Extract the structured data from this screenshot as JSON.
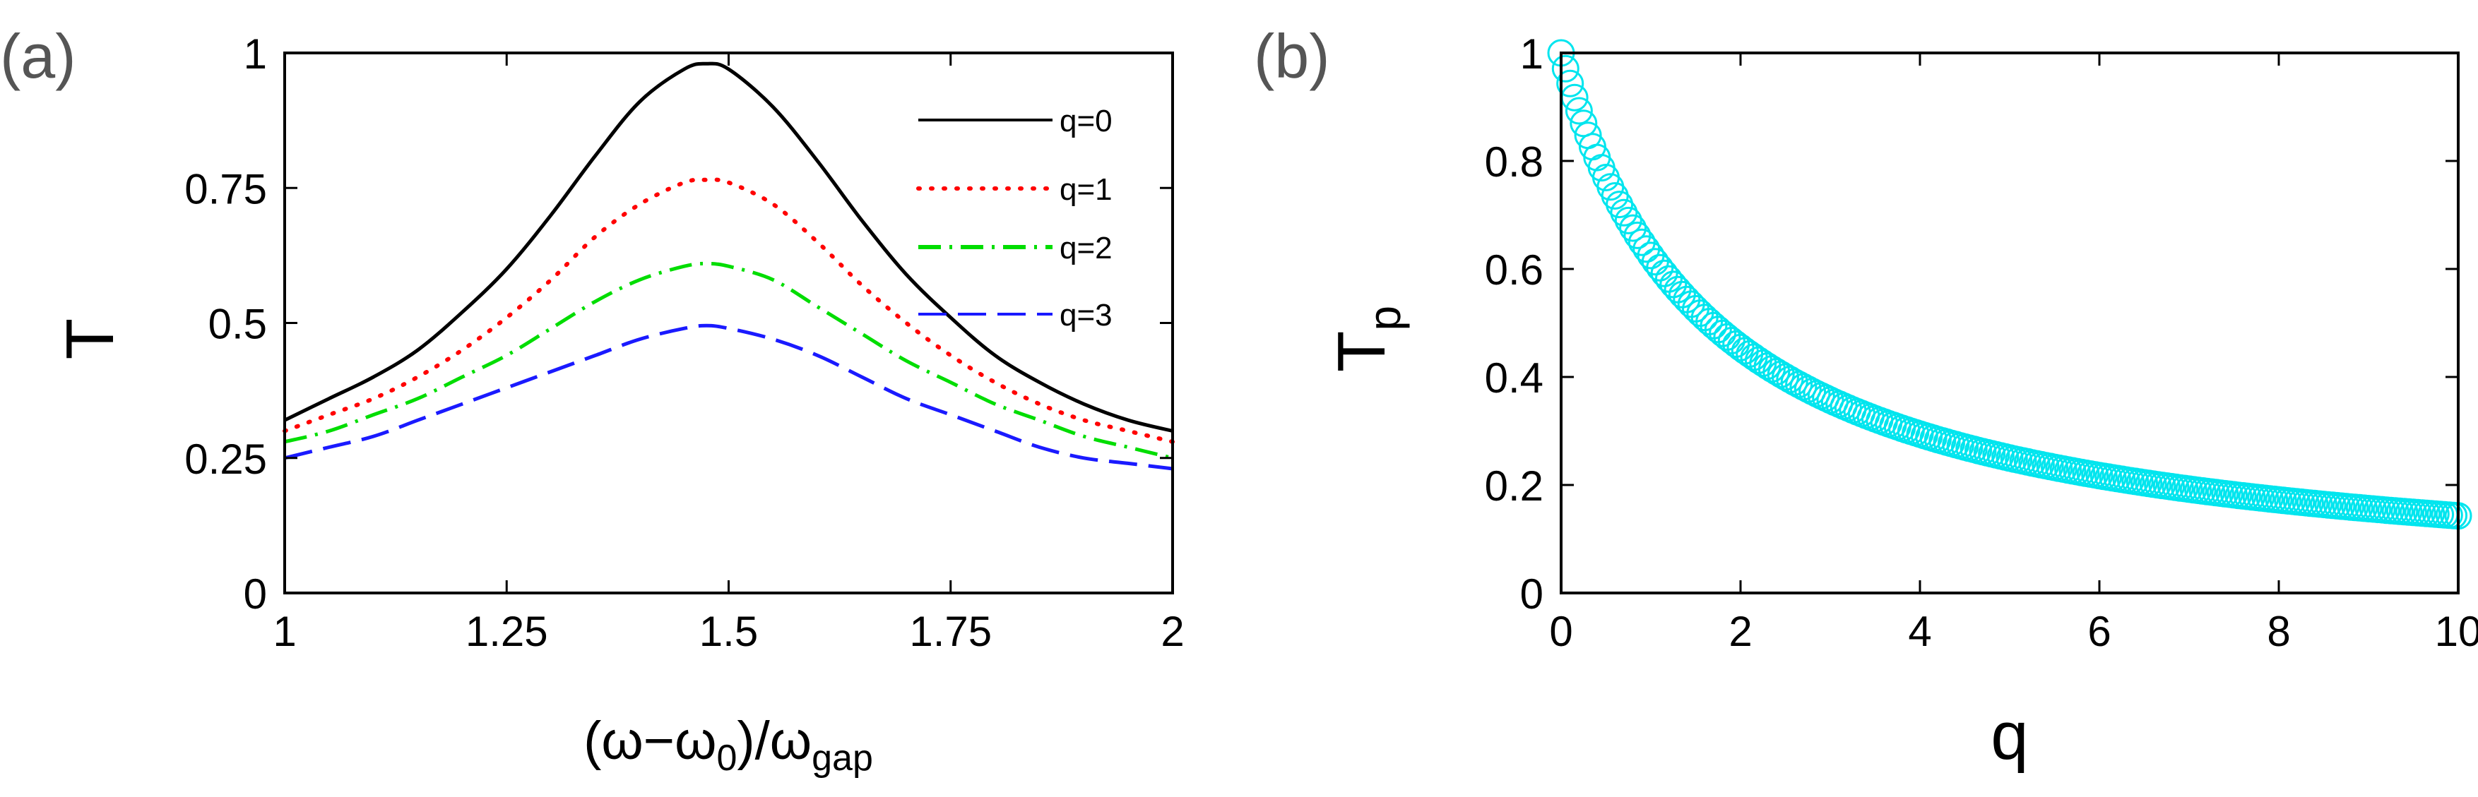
{
  "chart_data": [
    {
      "panel_label": "(a)",
      "type": "line",
      "xlabel": {
        "main": "(ω−ω",
        "sub0": "0",
        "mid": ")/ω",
        "sub1": "gap"
      },
      "ylabel": "T",
      "xlim": [
        1,
        2
      ],
      "ylim": [
        0,
        1
      ],
      "xticks": [
        1,
        1.25,
        1.5,
        1.75,
        2
      ],
      "xtick_labels": [
        "1",
        "1.25",
        "1.5",
        "1.75",
        "2"
      ],
      "yticks": [
        0,
        0.25,
        0.5,
        0.75,
        1
      ],
      "ytick_labels": [
        "0",
        "0.25",
        "0.5",
        "0.75",
        "1"
      ],
      "legend_position": "top-right",
      "x": [
        1.0,
        1.05,
        1.1,
        1.15,
        1.2,
        1.25,
        1.3,
        1.35,
        1.4,
        1.45,
        1.475,
        1.5,
        1.55,
        1.6,
        1.65,
        1.7,
        1.75,
        1.8,
        1.85,
        1.9,
        1.95,
        2.0
      ],
      "series": [
        {
          "name": "q=0",
          "color": "#000000",
          "dash": "solid",
          "values": [
            0.32,
            0.36,
            0.4,
            0.45,
            0.52,
            0.6,
            0.7,
            0.81,
            0.91,
            0.97,
            0.98,
            0.97,
            0.9,
            0.8,
            0.69,
            0.59,
            0.51,
            0.44,
            0.39,
            0.35,
            0.32,
            0.3
          ]
        },
        {
          "name": "q=1",
          "color": "#ff0000",
          "dash": "dot",
          "values": [
            0.3,
            0.33,
            0.36,
            0.4,
            0.45,
            0.51,
            0.58,
            0.66,
            0.72,
            0.76,
            0.765,
            0.76,
            0.72,
            0.65,
            0.57,
            0.5,
            0.44,
            0.39,
            0.35,
            0.32,
            0.3,
            0.28
          ]
        },
        {
          "name": "q=2",
          "color": "#00dd00",
          "dash": "dashdot",
          "values": [
            0.28,
            0.3,
            0.33,
            0.36,
            0.4,
            0.44,
            0.49,
            0.54,
            0.58,
            0.605,
            0.61,
            0.605,
            0.58,
            0.53,
            0.48,
            0.43,
            0.39,
            0.35,
            0.32,
            0.29,
            0.27,
            0.25
          ]
        },
        {
          "name": "q=3",
          "color": "#1a1aff",
          "dash": "dash",
          "values": [
            0.25,
            0.27,
            0.29,
            0.32,
            0.35,
            0.38,
            0.41,
            0.44,
            0.47,
            0.49,
            0.495,
            0.49,
            0.47,
            0.44,
            0.4,
            0.36,
            0.33,
            0.3,
            0.27,
            0.25,
            0.24,
            0.23
          ]
        }
      ]
    },
    {
      "panel_label": "(b)",
      "type": "scatter",
      "xlabel": "q",
      "ylabel": {
        "main": "T",
        "sub": "p"
      },
      "xlim": [
        0,
        10
      ],
      "ylim": [
        0,
        1
      ],
      "xticks": [
        0,
        2,
        4,
        6,
        8,
        10
      ],
      "xtick_labels": [
        "0",
        "2",
        "4",
        "6",
        "8",
        "10"
      ],
      "yticks": [
        0,
        0.2,
        0.4,
        0.6,
        0.8,
        1
      ],
      "ytick_labels": [
        "0",
        "0.2",
        "0.4",
        "0.6",
        "0.8",
        "1"
      ],
      "marker": "circle-open",
      "color": "#00e5ee",
      "function": "Tp = 1/(1 + 0.6 q)",
      "q_min": 0,
      "q_max": 10,
      "q_count": 201
    }
  ]
}
